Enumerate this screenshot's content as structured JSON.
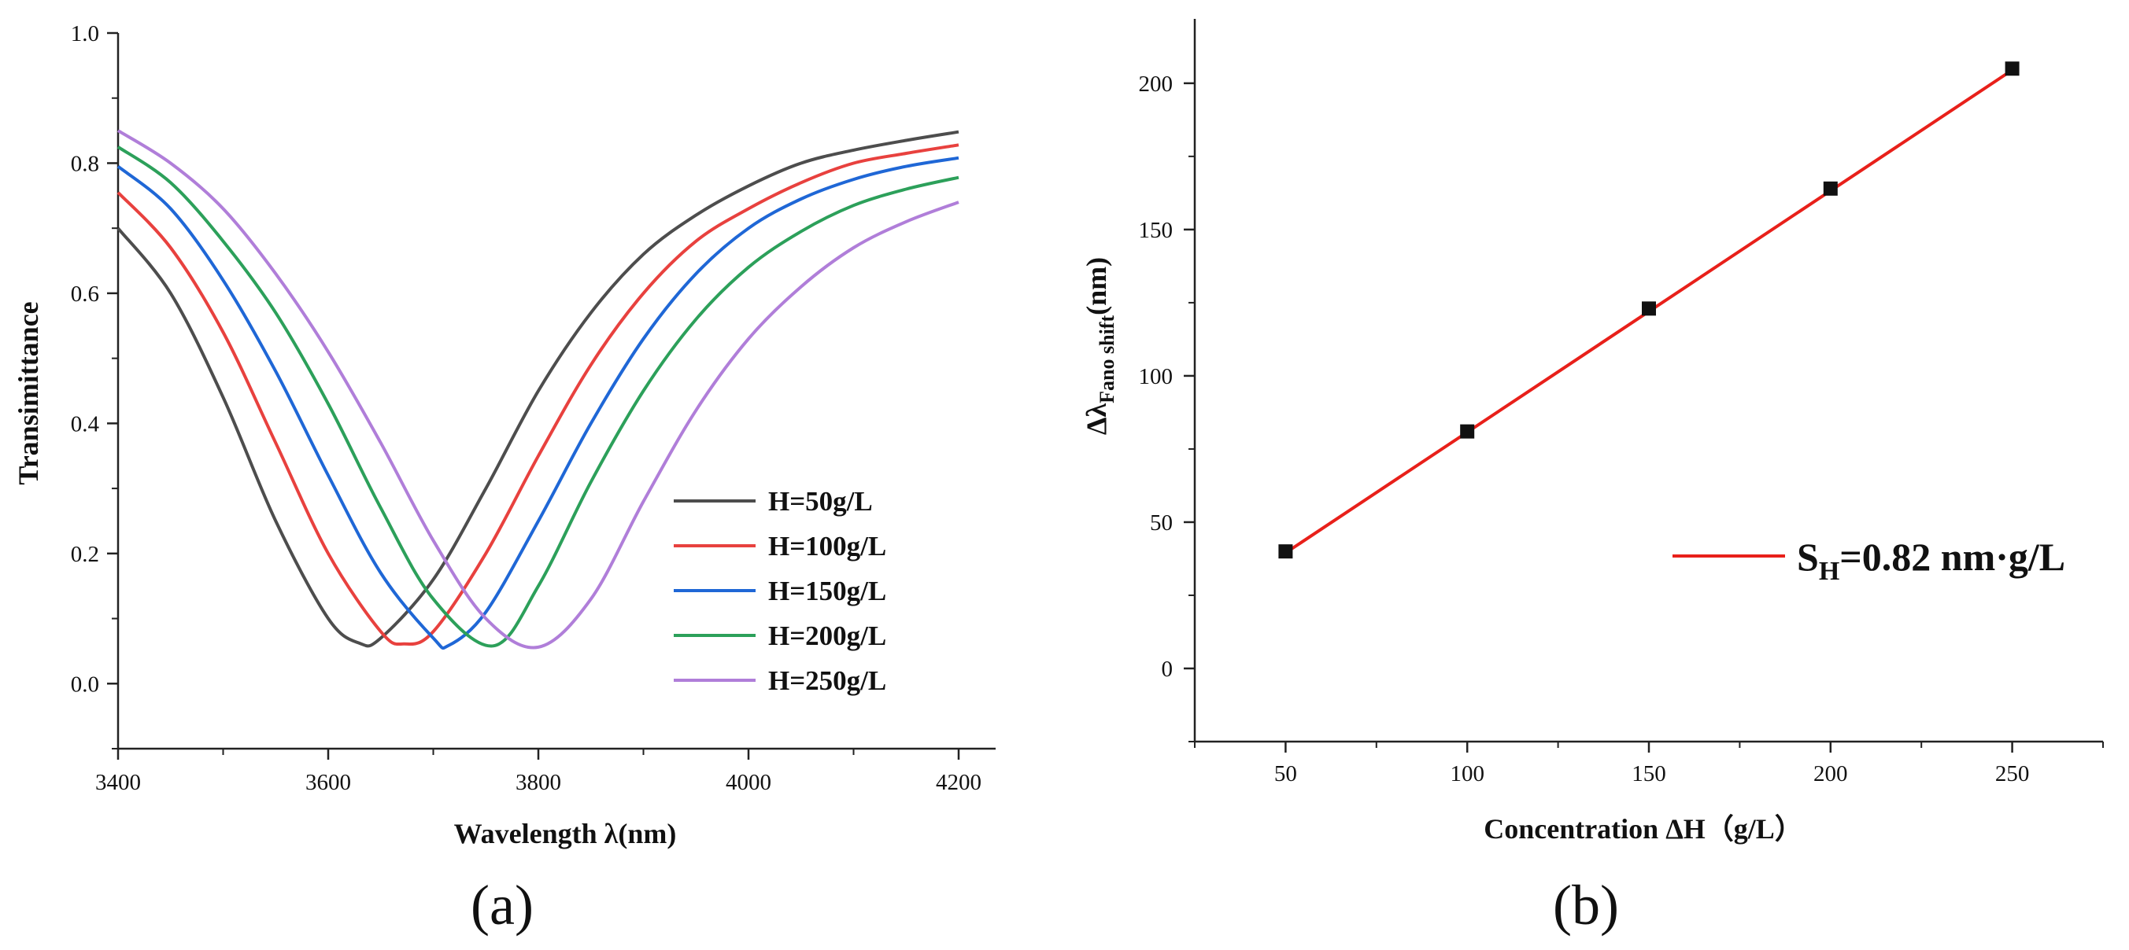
{
  "chart_data": [
    {
      "type": "line",
      "panel": "(a)",
      "xlabel": "Wavelength λ(nm)",
      "ylabel": "Transimittance",
      "xlim": [
        3400,
        4200
      ],
      "ylim": [
        -0.1,
        1.0
      ],
      "xticks": [
        "3400",
        "3600",
        "3800",
        "4000",
        "4200"
      ],
      "yticks": [
        "0.0",
        "0.2",
        "0.4",
        "0.6",
        "0.8",
        "1.0"
      ],
      "legend_position": "lower-right",
      "series": [
        {
          "name": "H=50g/L",
          "color": "#4d4d4d",
          "x": [
            3400,
            3450,
            3500,
            3550,
            3600,
            3630,
            3650,
            3700,
            3750,
            3800,
            3850,
            3900,
            3950,
            4000,
            4050,
            4100,
            4150,
            4200
          ],
          "y": [
            0.7,
            0.6,
            0.44,
            0.25,
            0.1,
            0.062,
            0.07,
            0.16,
            0.3,
            0.45,
            0.57,
            0.66,
            0.72,
            0.765,
            0.8,
            0.82,
            0.835,
            0.848
          ]
        },
        {
          "name": "H=100g/L",
          "color": "#e8413e",
          "x": [
            3400,
            3450,
            3500,
            3550,
            3600,
            3650,
            3672,
            3700,
            3750,
            3800,
            3850,
            3900,
            3950,
            4000,
            4050,
            4100,
            4150,
            4200
          ],
          "y": [
            0.755,
            0.67,
            0.54,
            0.37,
            0.2,
            0.08,
            0.061,
            0.08,
            0.2,
            0.35,
            0.49,
            0.6,
            0.68,
            0.73,
            0.77,
            0.8,
            0.815,
            0.828
          ]
        },
        {
          "name": "H=150g/L",
          "color": "#1f67d6",
          "x": [
            3400,
            3450,
            3500,
            3550,
            3600,
            3650,
            3700,
            3715,
            3750,
            3800,
            3850,
            3900,
            3950,
            4000,
            4050,
            4100,
            4150,
            4200
          ],
          "y": [
            0.795,
            0.73,
            0.62,
            0.48,
            0.32,
            0.17,
            0.07,
            0.059,
            0.11,
            0.25,
            0.4,
            0.53,
            0.63,
            0.7,
            0.745,
            0.775,
            0.795,
            0.808
          ]
        },
        {
          "name": "H=200g/L",
          "color": "#2ca05a",
          "x": [
            3400,
            3450,
            3500,
            3550,
            3600,
            3650,
            3700,
            3757,
            3800,
            3850,
            3900,
            3950,
            4000,
            4050,
            4100,
            4150,
            4200
          ],
          "y": [
            0.825,
            0.77,
            0.68,
            0.57,
            0.43,
            0.27,
            0.13,
            0.058,
            0.15,
            0.31,
            0.45,
            0.56,
            0.64,
            0.695,
            0.735,
            0.76,
            0.778
          ]
        },
        {
          "name": "H=250g/L",
          "color": "#b07ed9",
          "x": [
            3400,
            3450,
            3500,
            3550,
            3600,
            3650,
            3700,
            3750,
            3800,
            3850,
            3900,
            3950,
            4000,
            4050,
            4100,
            4150,
            4200
          ],
          "y": [
            0.85,
            0.8,
            0.73,
            0.63,
            0.51,
            0.37,
            0.22,
            0.1,
            0.056,
            0.13,
            0.28,
            0.42,
            0.53,
            0.61,
            0.67,
            0.71,
            0.74
          ]
        }
      ]
    },
    {
      "type": "scatter",
      "panel": "(b)",
      "xlabel": "Concentration ΔH（g/L）",
      "ylabel_main": "Δλ",
      "ylabel_sub": "Fano shift",
      "ylabel_unit": "(nm)",
      "xlim": [
        25,
        275
      ],
      "ylim": [
        -25,
        222
      ],
      "xticks": [
        "50",
        "100",
        "150",
        "200",
        "250"
      ],
      "yticks": [
        "0",
        "50",
        "100",
        "150",
        "200"
      ],
      "points": {
        "x": [
          50,
          100,
          150,
          200,
          250
        ],
        "y": [
          40,
          81,
          123,
          164,
          205
        ]
      },
      "fit": {
        "x": [
          50,
          250
        ],
        "y": [
          39.5,
          204.5
        ],
        "color": "#e8201a"
      },
      "legend_main": "S",
      "legend_sub": "H",
      "legend_rest": "=0.82 nm·g/L",
      "legend_position": "center-right"
    }
  ]
}
